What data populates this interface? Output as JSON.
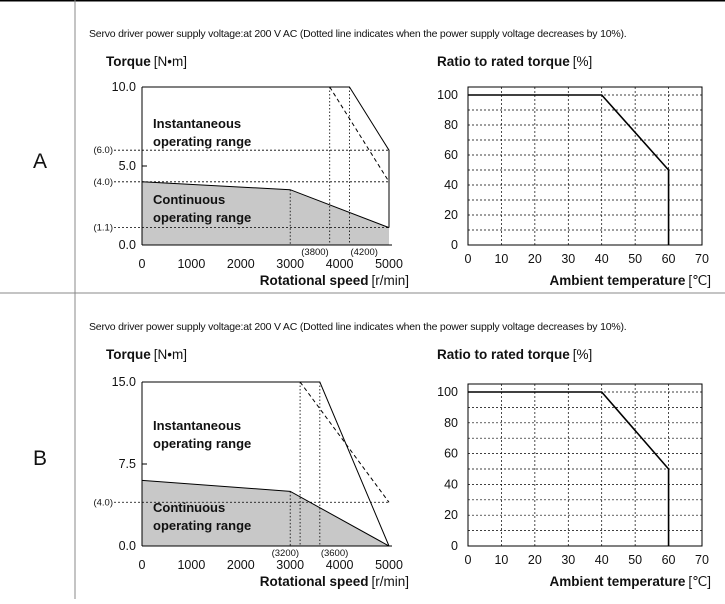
{
  "rows": [
    {
      "label": "A",
      "note": "Servo driver power supply voltage:at 200 V AC (Dotted line indicates when the power supply voltage decreases by 10%).",
      "torque_chart": {
        "type": "area",
        "y_title": "Torque",
        "y_unit": "[N•m]",
        "x_title": "Rotational speed",
        "x_unit": "[r/min]",
        "xlim": [
          0,
          5000
        ],
        "ylim": [
          0,
          10
        ],
        "x_ticks": [
          "0",
          "1000",
          "2000",
          "3000",
          "4000",
          "5000"
        ],
        "y_ticks": [
          {
            "value": 0,
            "label": "0.0"
          },
          {
            "value": 5,
            "label": "5.0"
          },
          {
            "value": 10,
            "label": "10.0"
          }
        ],
        "y_markers": [
          {
            "value": 6.0,
            "label": "(6.0)"
          },
          {
            "value": 4.0,
            "label": "(4.0)"
          },
          {
            "value": 1.1,
            "label": "(1.1)"
          }
        ],
        "x_markers": [
          {
            "value": 3800,
            "label": "(3800)"
          },
          {
            "value": 4200,
            "label": "(4200)"
          }
        ],
        "instantaneous_label": [
          "Instantaneous",
          "operating range"
        ],
        "continuous_label": [
          "Continuous",
          "operating range"
        ],
        "instantaneous_boundary": [
          [
            0,
            10
          ],
          [
            4200,
            10
          ],
          [
            5000,
            6.0
          ],
          [
            5000,
            1.1
          ]
        ],
        "instantaneous_boundary_reduced": [
          [
            3800,
            10
          ],
          [
            5000,
            4.0
          ]
        ],
        "continuous_boundary": [
          [
            0,
            4.0
          ],
          [
            3000,
            3.5
          ],
          [
            5000,
            1.1
          ]
        ],
        "continuous_breakpoint": {
          "x": 3000,
          "y": 3.5
        },
        "fill_color": "#c8c8c8"
      },
      "derating_chart": {
        "type": "line",
        "y_title": "Ratio to rated torque",
        "y_unit": "[%]",
        "x_title": "Ambient temperature",
        "x_unit": "[℃]",
        "xlim": [
          0,
          70
        ],
        "ylim": [
          0,
          100
        ],
        "x_ticks": [
          "0",
          "10",
          "20",
          "30",
          "40",
          "50",
          "60",
          "70"
        ],
        "y_ticks": [
          "0",
          "20",
          "40",
          "60",
          "80",
          "100"
        ],
        "points": [
          [
            0,
            100
          ],
          [
            40,
            100
          ],
          [
            60,
            50
          ],
          [
            60,
            0
          ]
        ]
      }
    },
    {
      "label": "B",
      "note": "Servo driver power supply voltage:at 200 V AC (Dotted line indicates when the power supply voltage decreases by 10%).",
      "torque_chart": {
        "type": "area",
        "y_title": "Torque",
        "y_unit": "[N•m]",
        "x_title": "Rotational speed",
        "x_unit": "[r/min]",
        "xlim": [
          0,
          5000
        ],
        "ylim": [
          0,
          15
        ],
        "x_ticks": [
          "0",
          "1000",
          "2000",
          "3000",
          "4000",
          "5000"
        ],
        "y_ticks": [
          {
            "value": 0,
            "label": "0.0"
          },
          {
            "value": 7.5,
            "label": "7.5"
          },
          {
            "value": 15,
            "label": "15.0"
          }
        ],
        "y_markers": [
          {
            "value": 4.0,
            "label": "(4.0)"
          }
        ],
        "x_markers": [
          {
            "value": 3200,
            "label": "(3200)"
          },
          {
            "value": 3600,
            "label": "(3600)"
          }
        ],
        "instantaneous_label": [
          "Instantaneous",
          "operating range"
        ],
        "continuous_label": [
          "Continuous",
          "operating range"
        ],
        "instantaneous_boundary": [
          [
            0,
            15
          ],
          [
            3600,
            15
          ],
          [
            5000,
            0
          ]
        ],
        "instantaneous_boundary_reduced": [
          [
            3200,
            15
          ],
          [
            5000,
            4.0
          ]
        ],
        "continuous_boundary": [
          [
            0,
            6.0
          ],
          [
            3000,
            5.0
          ],
          [
            5000,
            0
          ]
        ],
        "continuous_breakpoint": {
          "x": 3000,
          "y": 5.0
        },
        "fill_color": "#c8c8c8"
      },
      "derating_chart": {
        "type": "line",
        "y_title": "Ratio to rated torque",
        "y_unit": "[%]",
        "x_title": "Ambient temperature",
        "x_unit": "[℃]",
        "xlim": [
          0,
          70
        ],
        "ylim": [
          0,
          100
        ],
        "x_ticks": [
          "0",
          "10",
          "20",
          "30",
          "40",
          "50",
          "60",
          "70"
        ],
        "y_ticks": [
          "0",
          "20",
          "40",
          "60",
          "80",
          "100"
        ],
        "points": [
          [
            0,
            100
          ],
          [
            40,
            100
          ],
          [
            60,
            50
          ],
          [
            60,
            0
          ]
        ]
      }
    }
  ],
  "chart_data": [
    {
      "type": "area",
      "title": "",
      "xlabel": "Rotational speed [r/min]",
      "ylabel": "Torque [N•m]",
      "xlim": [
        0,
        5000
      ],
      "ylim": [
        0,
        10
      ],
      "series": [
        {
          "name": "Instantaneous operating range",
          "x": [
            0,
            4200,
            5000,
            5000
          ],
          "values": [
            10,
            10,
            6.0,
            1.1
          ]
        },
        {
          "name": "Continuous operating range",
          "x": [
            0,
            3000,
            5000
          ],
          "values": [
            4.0,
            3.5,
            1.1
          ]
        }
      ]
    },
    {
      "type": "line",
      "title": "",
      "xlabel": "Ambient temperature [℃]",
      "ylabel": "Ratio to rated torque [%]",
      "xlim": [
        0,
        70
      ],
      "ylim": [
        0,
        100
      ],
      "series": [
        {
          "x": [
            0,
            40,
            60,
            60
          ],
          "values": [
            100,
            100,
            50,
            0
          ]
        }
      ]
    },
    {
      "type": "area",
      "title": "",
      "xlabel": "Rotational speed [r/min]",
      "ylabel": "Torque [N•m]",
      "xlim": [
        0,
        5000
      ],
      "ylim": [
        0,
        15
      ],
      "series": [
        {
          "name": "Instantaneous operating range",
          "x": [
            0,
            3600,
            5000
          ],
          "values": [
            15,
            15,
            0
          ]
        },
        {
          "name": "Continuous operating range",
          "x": [
            0,
            3000,
            5000
          ],
          "values": [
            6.0,
            5.0,
            0
          ]
        }
      ]
    },
    {
      "type": "line",
      "title": "",
      "xlabel": "Ambient temperature [℃]",
      "ylabel": "Ratio to rated torque [%]",
      "xlim": [
        0,
        70
      ],
      "ylim": [
        0,
        100
      ],
      "series": [
        {
          "x": [
            0,
            40,
            60,
            60
          ],
          "values": [
            100,
            100,
            50,
            0
          ]
        }
      ]
    }
  ]
}
